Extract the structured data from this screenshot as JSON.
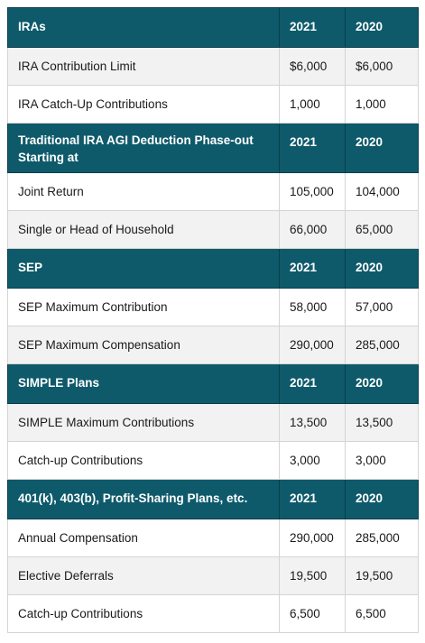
{
  "sections": [
    {
      "header": "IRAs",
      "year1": "2021",
      "year2": "2020",
      "rows": [
        {
          "label": "IRA Contribution Limit",
          "v2021": "$6,000",
          "v2020": "$6,000"
        },
        {
          "label": "IRA Catch-Up Contributions",
          "v2021": "1,000",
          "v2020": "1,000"
        }
      ]
    },
    {
      "header": "Traditional IRA AGI Deduction Phase-out Starting at",
      "year1": "2021",
      "year2": "2020",
      "rows": [
        {
          "label": "Joint Return",
          "v2021": "105,000",
          "v2020": "104,000"
        },
        {
          "label": "Single or Head of Household",
          "v2021": "66,000",
          "v2020": "65,000"
        }
      ]
    },
    {
      "header": "SEP",
      "year1": "2021",
      "year2": "2020",
      "rows": [
        {
          "label": "SEP Maximum Contribution",
          "v2021": "58,000",
          "v2020": "57,000"
        },
        {
          "label": "SEP Maximum Compensation",
          "v2021": "290,000",
          "v2020": "285,000"
        }
      ]
    },
    {
      "header": "SIMPLE Plans",
      "year1": "2021",
      "year2": "2020",
      "rows": [
        {
          "label": "SIMPLE Maximum Contributions",
          "v2021": "13,500",
          "v2020": "13,500"
        },
        {
          "label": "Catch-up Contributions",
          "v2021": "3,000",
          "v2020": "3,000"
        }
      ]
    },
    {
      "header": "401(k), 403(b), Profit-Sharing Plans, etc.",
      "year1": "2021",
      "year2": "2020",
      "rows": [
        {
          "label": "Annual Compensation",
          "v2021": "290,000",
          "v2020": "285,000"
        },
        {
          "label": "Elective Deferrals",
          "v2021": "19,500",
          "v2020": "19,500"
        },
        {
          "label": "Catch-up Contributions",
          "v2021": "6,500",
          "v2020": "6,500"
        }
      ]
    }
  ],
  "colors": {
    "header_bg": "#0e5a6b",
    "header_text": "#ffffff",
    "row_alt_bg": "#f2f2f2",
    "row_bg": "#ffffff",
    "border": "#d4d4d4"
  }
}
